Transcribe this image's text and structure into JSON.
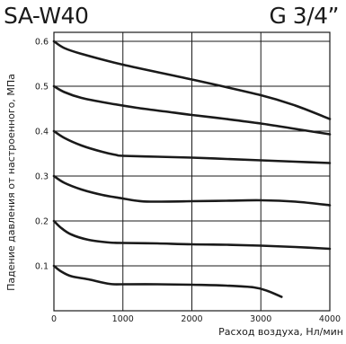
{
  "header": {
    "model": "SA-W40",
    "thread_size": "G 3/4”"
  },
  "chart_data": {
    "type": "line",
    "xlabel": "Расход воздуха, Нл/мин",
    "ylabel": "Падение давления от настроенного, МПа",
    "xlim": [
      0,
      4000
    ],
    "ylim": [
      0,
      0.62
    ],
    "x_ticks": [
      0,
      1000,
      2000,
      3000,
      4000
    ],
    "x_tick_labels": [
      "0",
      "1000",
      "2000",
      "3000",
      "4000"
    ],
    "y_ticks": [
      0.1,
      0.2,
      0.3,
      0.4,
      0.5,
      0.6
    ],
    "y_tick_labels": [
      "0.1",
      "0.2",
      "0.3",
      "0.4",
      "0.5",
      "0.6"
    ],
    "grid": true,
    "series": [
      {
        "x": [
          0,
          150,
          400,
          1000,
          2000,
          3000,
          3500,
          4000
        ],
        "y": [
          0.6,
          0.585,
          0.572,
          0.548,
          0.515,
          0.48,
          0.457,
          0.427
        ]
      },
      {
        "x": [
          0,
          150,
          400,
          800,
          1200,
          1600,
          2000,
          2500,
          3000,
          3500,
          4000
        ],
        "y": [
          0.5,
          0.487,
          0.474,
          0.462,
          0.452,
          0.444,
          0.436,
          0.427,
          0.417,
          0.405,
          0.393
        ]
      },
      {
        "x": [
          0,
          150,
          400,
          700,
          900,
          1000,
          1500,
          2000,
          2500,
          3000,
          3500,
          4000
        ],
        "y": [
          0.4,
          0.385,
          0.368,
          0.354,
          0.347,
          0.345,
          0.343,
          0.341,
          0.338,
          0.335,
          0.332,
          0.329
        ]
      },
      {
        "x": [
          0,
          150,
          400,
          700,
          1000,
          1200,
          1400,
          2000,
          2500,
          3000,
          3500,
          4000
        ],
        "y": [
          0.3,
          0.285,
          0.27,
          0.258,
          0.25,
          0.245,
          0.243,
          0.244,
          0.245,
          0.246,
          0.243,
          0.235
        ]
      },
      {
        "x": [
          0,
          100,
          250,
          500,
          800,
          1000,
          1500,
          2000,
          2500,
          3000,
          3500,
          4000
        ],
        "y": [
          0.2,
          0.185,
          0.17,
          0.158,
          0.152,
          0.151,
          0.15,
          0.148,
          0.147,
          0.145,
          0.142,
          0.138
        ]
      },
      {
        "x": [
          0,
          100,
          250,
          500,
          800,
          1000,
          1500,
          2000,
          2500,
          2900,
          3100,
          3300
        ],
        "y": [
          0.1,
          0.088,
          0.077,
          0.07,
          0.06,
          0.059,
          0.059,
          0.058,
          0.056,
          0.052,
          0.044,
          0.031
        ]
      }
    ]
  }
}
